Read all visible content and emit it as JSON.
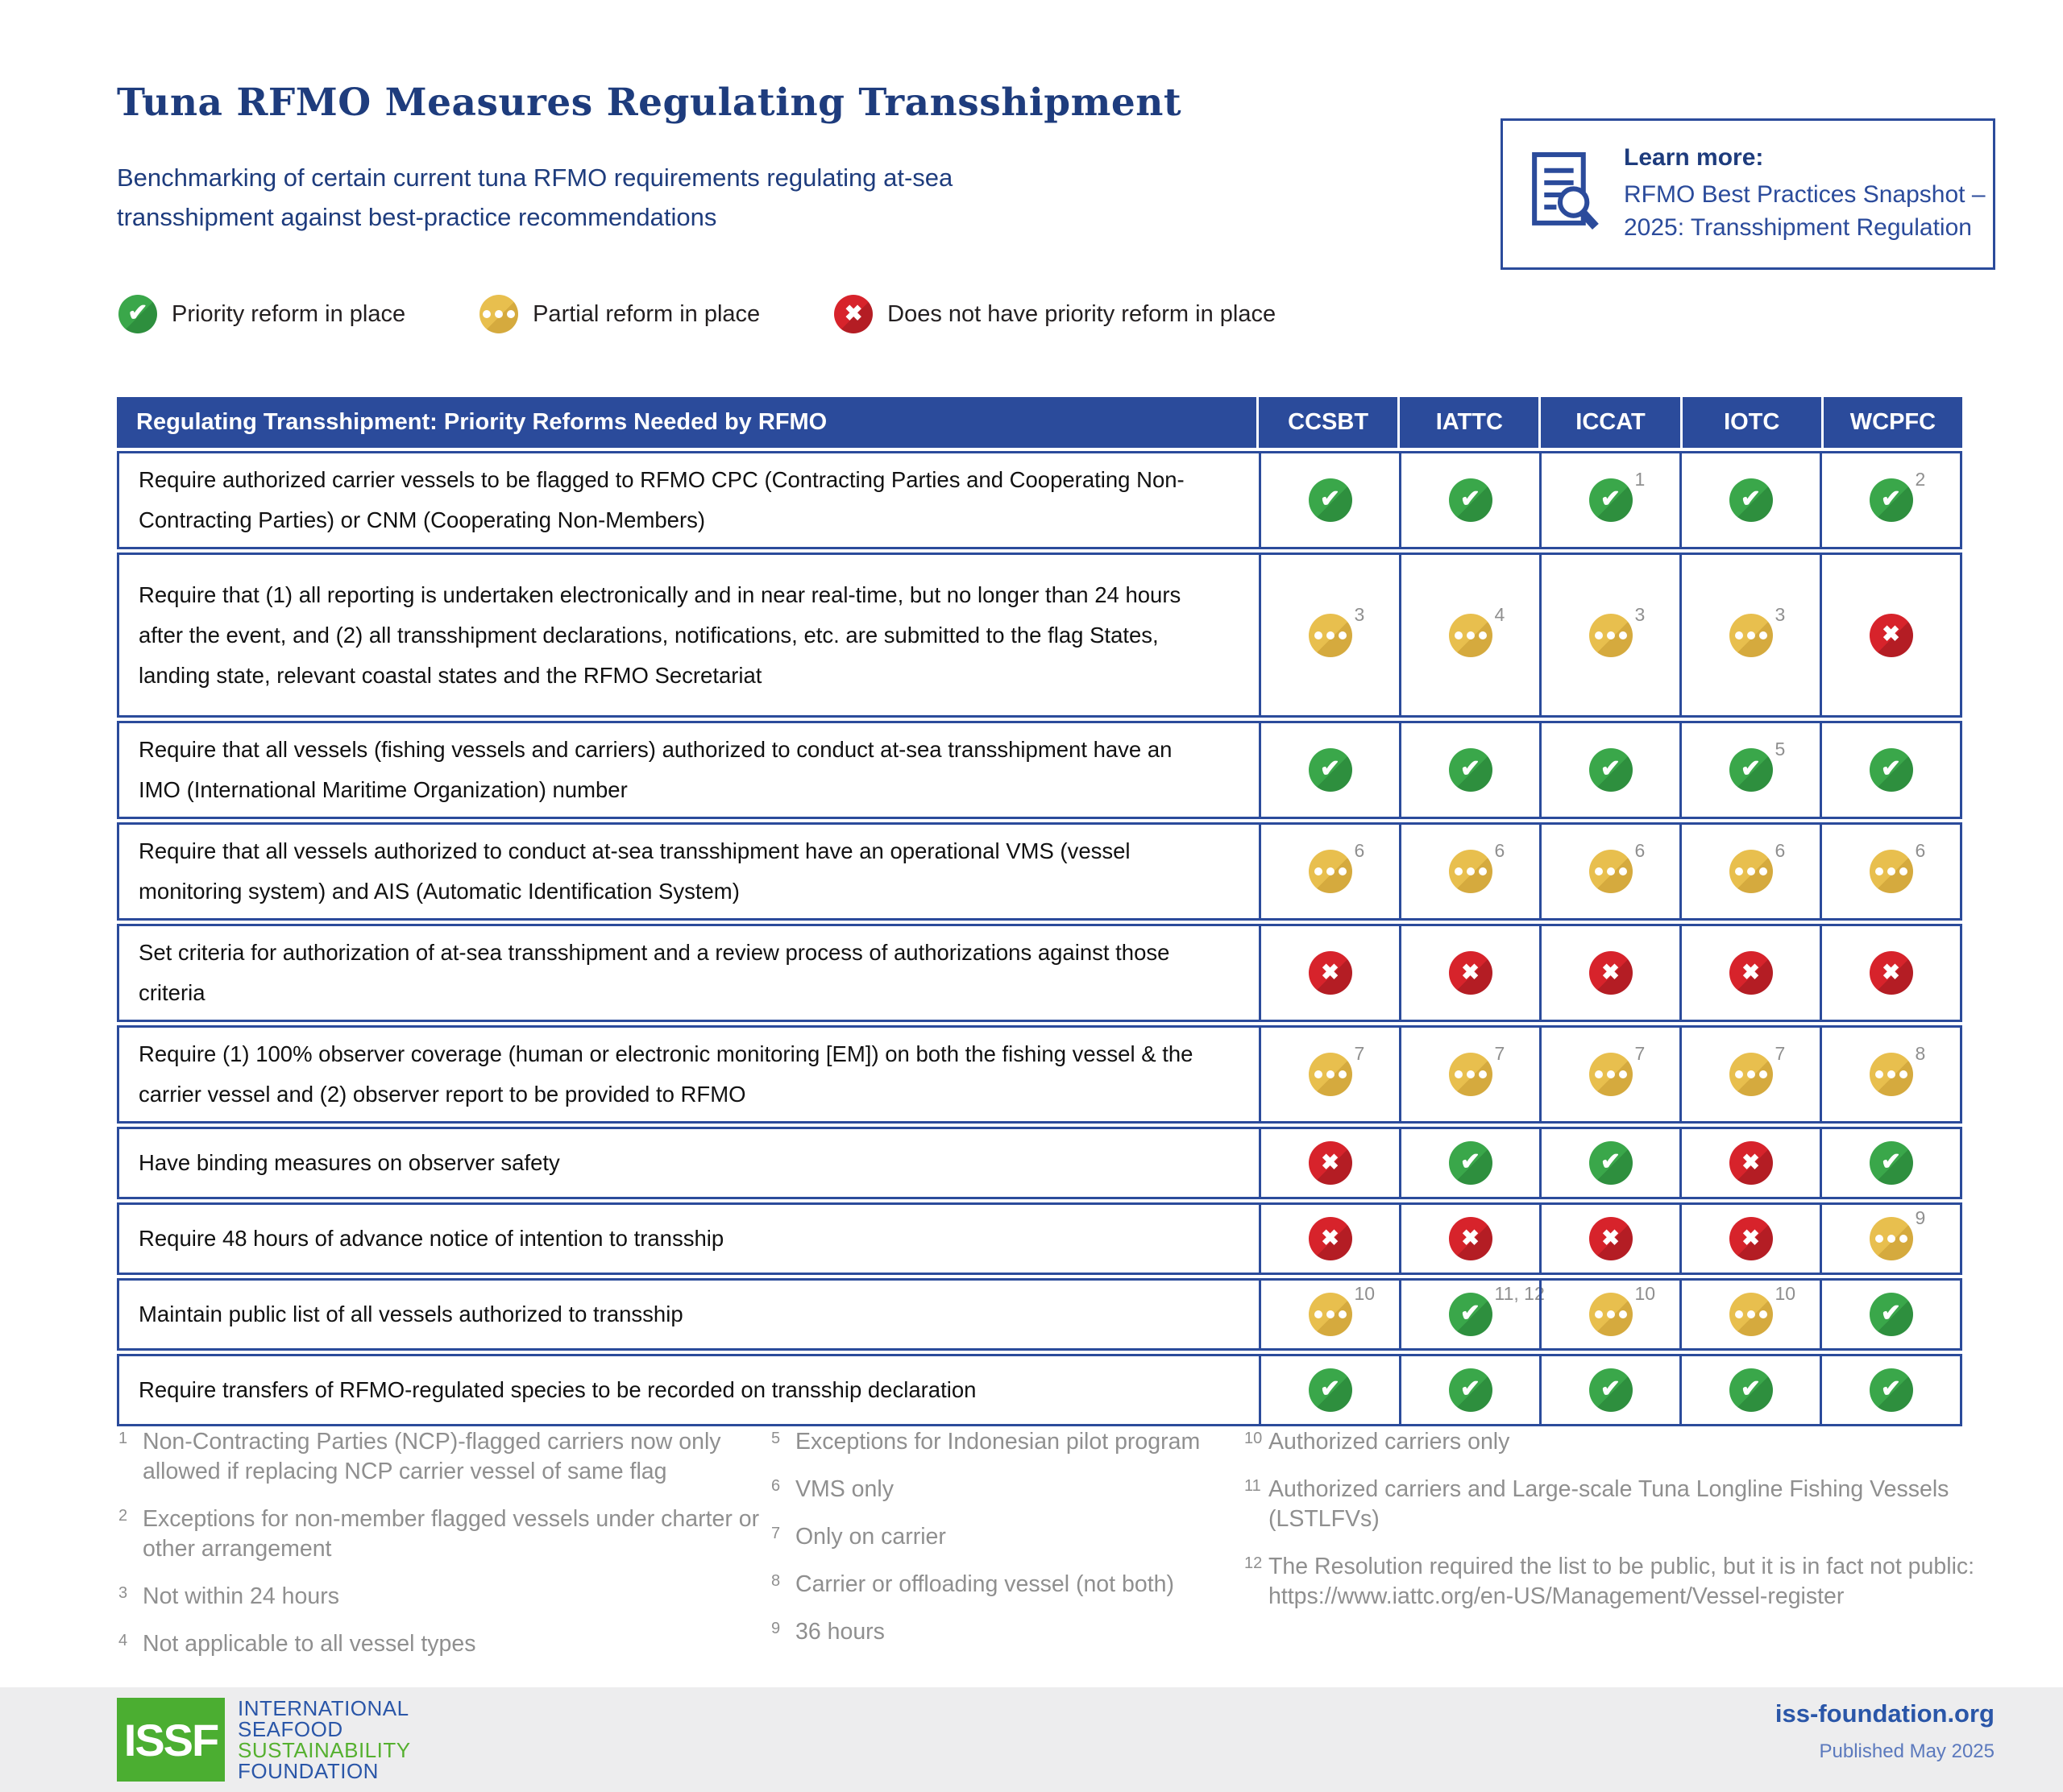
{
  "header": {
    "title": "Tuna RFMO Measures Regulating Transshipment",
    "subtitle": "Benchmarking of certain current tuna RFMO requirements regulating at-sea transshipment against best-practice recommendations"
  },
  "learn_more": {
    "label": "Learn more:",
    "link_text": "RFMO Best Practices Snapshot – 2025: Transshipment Regulation"
  },
  "legend": [
    {
      "status": "check",
      "label": "Priority reform in place"
    },
    {
      "status": "partial",
      "label": "Partial reform in place"
    },
    {
      "status": "cross",
      "label": "Does not have priority reform in place"
    }
  ],
  "icons": {
    "check_glyph": "✔",
    "cross_glyph": "✖"
  },
  "colors": {
    "brand_navy": "#2b4b9b",
    "title_navy": "#1e3c7d",
    "status_green": "#3aa74a",
    "status_yellow": "#e8bf4e",
    "status_red": "#d7232b",
    "footnote_gray": "#8f8f8f",
    "issf_green": "#4bae31",
    "issf_blue": "#2a56a8"
  },
  "table": {
    "header": "Regulating Transshipment: Priority Reforms Needed by RFMO",
    "rfmos": [
      "CCSBT",
      "IATTC",
      "ICCAT",
      "IOTC",
      "WCPFC"
    ],
    "rows": [
      {
        "requirement": "Require authorized carrier vessels to be flagged to RFMO CPC (Contracting Parties and Cooperating Non-Contracting Parties) or CNM (Cooperating Non-Members)",
        "statuses": [
          {
            "icon": "check",
            "note": ""
          },
          {
            "icon": "check",
            "note": ""
          },
          {
            "icon": "check",
            "note": "1"
          },
          {
            "icon": "check",
            "note": ""
          },
          {
            "icon": "check",
            "note": "2"
          }
        ]
      },
      {
        "requirement": "Require that (1) all reporting is undertaken electronically and in near real-time, but no longer than 24 hours after the event, and (2) all transshipment declarations, notifications, etc. are submitted to the flag States, landing state, relevant coastal states and the RFMO Secretariat",
        "statuses": [
          {
            "icon": "partial",
            "note": "3"
          },
          {
            "icon": "partial",
            "note": "4"
          },
          {
            "icon": "partial",
            "note": "3"
          },
          {
            "icon": "partial",
            "note": "3"
          },
          {
            "icon": "cross",
            "note": ""
          }
        ]
      },
      {
        "requirement": "Require that all vessels (fishing vessels and carriers) authorized to conduct at-sea transshipment have an IMO (International Maritime Organization) number",
        "statuses": [
          {
            "icon": "check",
            "note": ""
          },
          {
            "icon": "check",
            "note": ""
          },
          {
            "icon": "check",
            "note": ""
          },
          {
            "icon": "check",
            "note": "5"
          },
          {
            "icon": "check",
            "note": ""
          }
        ]
      },
      {
        "requirement": "Require that all vessels authorized to conduct at-sea transshipment have an operational VMS (vessel monitoring system) and AIS (Automatic Identification System)",
        "statuses": [
          {
            "icon": "partial",
            "note": "6"
          },
          {
            "icon": "partial",
            "note": "6"
          },
          {
            "icon": "partial",
            "note": "6"
          },
          {
            "icon": "partial",
            "note": "6"
          },
          {
            "icon": "partial",
            "note": "6"
          }
        ]
      },
      {
        "requirement": "Set criteria for authorization of at-sea transshipment and a review process of authorizations against those criteria",
        "statuses": [
          {
            "icon": "cross",
            "note": ""
          },
          {
            "icon": "cross",
            "note": ""
          },
          {
            "icon": "cross",
            "note": ""
          },
          {
            "icon": "cross",
            "note": ""
          },
          {
            "icon": "cross",
            "note": ""
          }
        ]
      },
      {
        "requirement": "Require (1) 100% observer coverage (human or electronic monitoring [EM]) on both the fishing vessel & the carrier vessel and (2) observer report to be provided to RFMO",
        "statuses": [
          {
            "icon": "partial",
            "note": "7"
          },
          {
            "icon": "partial",
            "note": "7"
          },
          {
            "icon": "partial",
            "note": "7"
          },
          {
            "icon": "partial",
            "note": "7"
          },
          {
            "icon": "partial",
            "note": "8"
          }
        ]
      },
      {
        "requirement": "Have binding measures on observer safety",
        "statuses": [
          {
            "icon": "cross",
            "note": ""
          },
          {
            "icon": "check",
            "note": ""
          },
          {
            "icon": "check",
            "note": ""
          },
          {
            "icon": "cross",
            "note": ""
          },
          {
            "icon": "check",
            "note": ""
          }
        ]
      },
      {
        "requirement": "Require 48 hours of advance notice of intention to transship",
        "statuses": [
          {
            "icon": "cross",
            "note": ""
          },
          {
            "icon": "cross",
            "note": ""
          },
          {
            "icon": "cross",
            "note": ""
          },
          {
            "icon": "cross",
            "note": ""
          },
          {
            "icon": "partial",
            "note": "9"
          }
        ]
      },
      {
        "requirement": "Maintain public list of all vessels authorized to transship",
        "statuses": [
          {
            "icon": "partial",
            "note": "10"
          },
          {
            "icon": "check",
            "note": "11, 12"
          },
          {
            "icon": "partial",
            "note": "10"
          },
          {
            "icon": "partial",
            "note": "10"
          },
          {
            "icon": "check",
            "note": ""
          }
        ]
      },
      {
        "requirement": "Require transfers of RFMO-regulated species to be recorded on transship declaration",
        "statuses": [
          {
            "icon": "check",
            "note": ""
          },
          {
            "icon": "check",
            "note": ""
          },
          {
            "icon": "check",
            "note": ""
          },
          {
            "icon": "check",
            "note": ""
          },
          {
            "icon": "check",
            "note": ""
          }
        ]
      }
    ]
  },
  "footnotes": {
    "columns": [
      [
        {
          "n": "1",
          "t": "Non-Contracting Parties (NCP)-flagged carriers now only allowed if replacing NCP carrier vessel of same flag"
        },
        {
          "n": "2",
          "t": "Exceptions for non-member flagged vessels under charter or other arrangement"
        },
        {
          "n": "3",
          "t": "Not within 24 hours"
        },
        {
          "n": "4",
          "t": "Not applicable to all vessel types"
        }
      ],
      [
        {
          "n": "5",
          "t": "Exceptions for Indonesian pilot program"
        },
        {
          "n": "6",
          "t": "VMS only"
        },
        {
          "n": "7",
          "t": "Only on carrier"
        },
        {
          "n": "8",
          "t": "Carrier or offloading vessel (not both)"
        },
        {
          "n": "9",
          "t": "36 hours"
        }
      ],
      [
        {
          "n": "10",
          "t": "Authorized carriers only"
        },
        {
          "n": "11",
          "t": "Authorized carriers and Large-scale Tuna Longline Fishing Vessels (LSTLFVs)"
        },
        {
          "n": "12",
          "t": "The Resolution required the list to be public, but it is in fact not public: https://www.iattc.org/en-US/Management/Vessel-register"
        }
      ]
    ]
  },
  "footer": {
    "logo_acronym": "ISSF",
    "logo_lines": [
      "INTERNATIONAL",
      "SEAFOOD",
      "SUSTAINABILITY",
      "FOUNDATION"
    ],
    "website": "iss-foundation.org",
    "published": "Published May 2025"
  }
}
